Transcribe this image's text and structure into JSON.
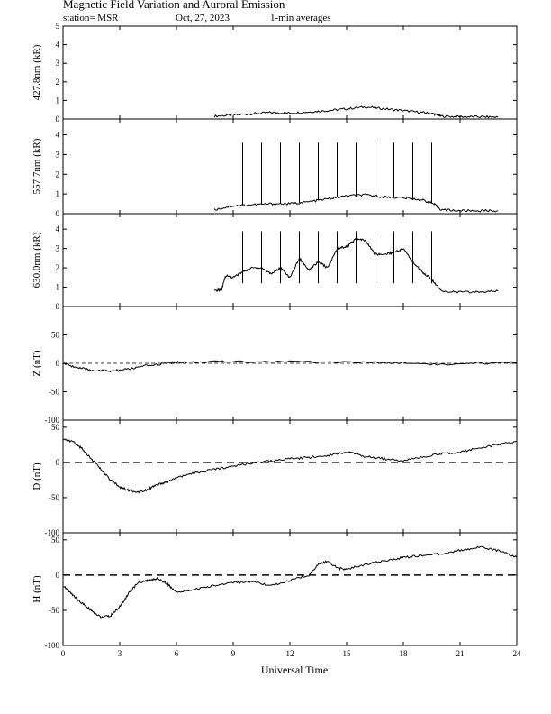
{
  "header": {
    "title": "Magnetic Field Variation and Auroral Emission",
    "station": "station= MSR",
    "date": "Oct, 27, 2023",
    "averaging": "1-min averages"
  },
  "chart_data": [
    {
      "type": "line",
      "ylabel": "427.8nm (kR)",
      "ylim": [
        0,
        5
      ],
      "yticks": [
        "0",
        "1",
        "2",
        "3",
        "4",
        "5"
      ],
      "x": [
        8.0,
        9.0,
        10.0,
        11.0,
        12.0,
        13.0,
        14.0,
        15.0,
        16.0,
        17.0,
        18.0,
        19.0,
        19.6,
        20.0,
        21.0,
        22.0,
        23.0
      ],
      "values": [
        0.15,
        0.22,
        0.28,
        0.35,
        0.32,
        0.38,
        0.45,
        0.55,
        0.65,
        0.55,
        0.45,
        0.35,
        0.28,
        0.15,
        0.12,
        0.12,
        0.1
      ],
      "data_start": 8.0,
      "data_end": 23.0
    },
    {
      "type": "line",
      "ylabel": "557.7nm (kR)",
      "ylim": [
        0,
        4.8
      ],
      "yticks": [
        "0",
        "1",
        "2",
        "3",
        "4"
      ],
      "x": [
        8.0,
        9.0,
        10.0,
        11.0,
        12.0,
        13.0,
        14.0,
        15.0,
        16.0,
        17.0,
        18.0,
        19.0,
        19.6,
        20.0,
        21.0,
        22.0,
        23.0
      ],
      "values": [
        0.2,
        0.4,
        0.45,
        0.5,
        0.5,
        0.6,
        0.75,
        0.9,
        0.95,
        0.85,
        0.8,
        0.7,
        0.5,
        0.2,
        0.15,
        0.15,
        0.15
      ],
      "spikes": {
        "x": [
          9.5,
          10.5,
          11.5,
          12.5,
          13.5,
          14.5,
          15.5,
          16.5,
          17.5,
          18.5,
          19.5
        ],
        "top": 3.6
      },
      "data_start": 8.0,
      "data_end": 23.0
    },
    {
      "type": "line",
      "ylabel": "630.0nm (kR)",
      "ylim": [
        0,
        4.8
      ],
      "yticks": [
        "0",
        "1",
        "2",
        "3",
        "4"
      ],
      "x": [
        8.0,
        8.4,
        8.6,
        9.0,
        9.5,
        10.0,
        10.5,
        11.0,
        11.5,
        12.0,
        12.5,
        13.0,
        13.5,
        14.0,
        14.5,
        15.0,
        15.5,
        16.0,
        16.5,
        17.0,
        17.5,
        18.0,
        18.5,
        19.0,
        19.5,
        20.0,
        21.0,
        22.0,
        23.0
      ],
      "values": [
        0.8,
        0.9,
        1.6,
        1.5,
        1.8,
        2.0,
        2.0,
        1.7,
        2.0,
        1.5,
        2.5,
        1.9,
        2.3,
        2.0,
        3.0,
        3.1,
        3.5,
        3.4,
        2.7,
        2.7,
        2.8,
        3.0,
        2.3,
        1.8,
        1.4,
        0.8,
        0.75,
        0.75,
        0.8
      ],
      "spikes": {
        "x": [
          9.5,
          10.5,
          11.5,
          12.5,
          13.5,
          14.5,
          15.5,
          16.5,
          17.5,
          18.5,
          19.5
        ],
        "top": 3.9
      },
      "data_start": 8.0,
      "data_end": 23.0
    },
    {
      "type": "line",
      "ylabel": "Z (nT)",
      "ylim": [
        -100,
        100
      ],
      "yticks": [
        "-100",
        "-50",
        "0",
        "50",
        ""
      ],
      "zero_line": "dashed-thin",
      "x": [
        0,
        0.8,
        1.5,
        2.5,
        3.5,
        4.5,
        5.5,
        6.0,
        7.0,
        9.0,
        12.0,
        15.0,
        18.0,
        20.5,
        22.0,
        24.0
      ],
      "values": [
        0,
        -8,
        -12,
        -14,
        -10,
        -4,
        0,
        2,
        2,
        3,
        3,
        2,
        1,
        -3,
        0,
        2
      ]
    },
    {
      "type": "line",
      "ylabel": "D (nT)",
      "ylim": [
        -100,
        60
      ],
      "yticks": [
        "-100",
        "-50",
        "0",
        "50"
      ],
      "zero_line": "dashed-thick",
      "x": [
        0,
        0.5,
        1.0,
        1.5,
        2.0,
        2.5,
        3.0,
        3.5,
        4.0,
        4.5,
        5.0,
        5.5,
        6.0,
        7.0,
        8.0,
        9.0,
        10.0,
        11.0,
        12.0,
        13.0,
        14.0,
        15.0,
        16.0,
        17.0,
        18.0,
        19.0,
        20.0,
        21.0,
        22.0,
        23.0,
        24.0
      ],
      "values": [
        32,
        30,
        20,
        5,
        -10,
        -25,
        -35,
        -40,
        -42,
        -38,
        -32,
        -28,
        -22,
        -15,
        -10,
        -5,
        -1,
        2,
        5,
        7,
        10,
        15,
        8,
        5,
        2,
        8,
        12,
        15,
        20,
        25,
        30
      ]
    },
    {
      "type": "line",
      "ylabel": "H (nT)",
      "ylim": [
        -100,
        60
      ],
      "yticks": [
        "-100",
        "-50",
        "0",
        "50"
      ],
      "zero_line": "dashed-thick",
      "x": [
        0,
        0.5,
        1.0,
        1.5,
        2.0,
        2.5,
        3.0,
        3.5,
        4.0,
        4.5,
        5.0,
        5.5,
        6.0,
        7.0,
        8.0,
        9.0,
        10.0,
        11.0,
        12.0,
        13.0,
        13.5,
        14.0,
        14.5,
        15.0,
        16.0,
        17.0,
        18.0,
        19.0,
        20.0,
        21.0,
        22.0,
        23.0,
        24.0
      ],
      "values": [
        -15,
        -28,
        -40,
        -50,
        -60,
        -58,
        -45,
        -25,
        -10,
        -8,
        -5,
        -12,
        -25,
        -20,
        -15,
        -10,
        -10,
        -15,
        -8,
        0,
        15,
        20,
        10,
        8,
        15,
        20,
        25,
        28,
        30,
        35,
        40,
        35,
        25
      ]
    }
  ],
  "x_axis": {
    "label": "Universal Time",
    "ticks": [
      "0",
      "3",
      "6",
      "9",
      "12",
      "15",
      "18",
      "21",
      "24"
    ],
    "range": [
      0,
      24
    ]
  }
}
